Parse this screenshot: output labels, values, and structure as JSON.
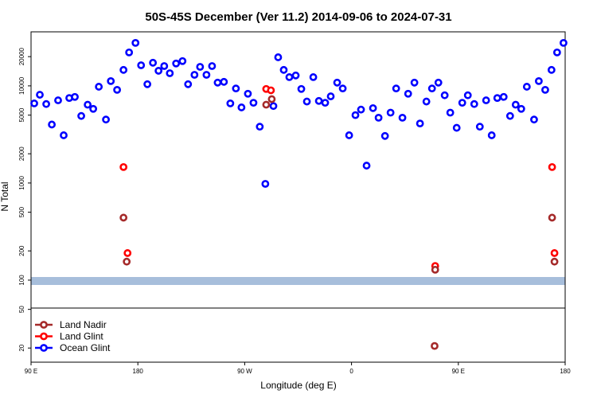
{
  "chart_data": {
    "type": "scatter",
    "title": "50S-45S December (Ver 11.2)   2014-09-06 to 2024-07-31",
    "xlabel": "Longitude (deg E)",
    "ylabel": "N Total",
    "ylog": true,
    "legend": "lower left",
    "xlim": [
      90,
      540
    ],
    "xticks": [
      {
        "value": 90,
        "label": "90 E"
      },
      {
        "value": 180,
        "label": "180"
      },
      {
        "value": 270,
        "label": "90 W"
      },
      {
        "value": 360,
        "label": "0"
      },
      {
        "value": 450,
        "label": "90 E"
      },
      {
        "value": 540,
        "label": "180"
      }
    ],
    "ylim": [
      14.3,
      36000
    ],
    "yticks": [
      20,
      50,
      100,
      200,
      500,
      1000,
      2000,
      5000,
      10000,
      20000
    ],
    "series": [
      {
        "name": "Land Nadir",
        "color": "#a52a2a",
        "x": [
          167.9,
          170.6,
          288.1,
          292.8,
          430.5,
          430,
          529,
          531
        ],
        "values": [
          440,
          155,
          6400,
          7300,
          128,
          21,
          440,
          155
        ]
      },
      {
        "name": "Land Glint",
        "color": "#ff0000",
        "x": [
          167.9,
          171.3,
          288.1,
          292.1,
          430.5,
          529,
          531
        ],
        "values": [
          1460,
          190,
          9300,
          9000,
          140,
          1460,
          190
        ]
      },
      {
        "name": "Ocean Glint",
        "color": "#0000ff",
        "x": [
          92.7,
          97.4,
          102.8,
          107.5,
          112.8,
          117.5,
          122.2,
          126.9,
          132.3,
          137.7,
          142.4,
          147.1,
          153.1,
          157.2,
          162.5,
          167.9,
          172.6,
          178,
          182.7,
          188,
          192.7,
          197.4,
          202.2,
          206.9,
          212.2,
          217.6,
          222.3,
          227.7,
          232.4,
          237.8,
          242.5,
          247.2,
          252.5,
          257.9,
          262.6,
          267.3,
          272.7,
          277.4,
          282.7,
          287.4,
          294.2,
          298.2,
          302.9,
          307.6,
          313,
          317.7,
          322.4,
          327.8,
          332.5,
          337.8,
          342.5,
          347.9,
          352.6,
          358,
          363.3,
          368,
          372.7,
          378.1,
          382.8,
          388.2,
          392.9,
          397.6,
          402.9,
          407.7,
          413,
          417.7,
          423.1,
          427.8,
          433.2,
          438.5,
          443.2,
          448.6,
          453.3,
          458,
          463.4,
          468.1,
          473.4,
          478.1,
          482.8,
          488.2,
          493.6,
          498.3,
          503,
          507.7,
          513.8,
          517.8,
          523.2,
          528.5,
          533.2,
          538.6
        ],
        "values": [
          6600,
          8100,
          6500,
          4000,
          7100,
          3100,
          7500,
          7700,
          4900,
          6400,
          5800,
          9800,
          4500,
          11200,
          9100,
          14600,
          22100,
          27700,
          16300,
          10400,
          17300,
          14300,
          16000,
          13500,
          17000,
          18000,
          10400,
          13000,
          15700,
          13000,
          16000,
          10800,
          11000,
          6600,
          9400,
          6000,
          8300,
          6700,
          3800,
          980,
          6200,
          19700,
          14600,
          12300,
          12800,
          9300,
          6900,
          12300,
          7000,
          6700,
          7800,
          10800,
          9400,
          3100,
          5000,
          5700,
          1510,
          5900,
          4700,
          3050,
          5300,
          9400,
          4700,
          8300,
          10800,
          4100,
          6900,
          9400,
          10800,
          8000,
          5300,
          3700,
          6700,
          8000,
          6500,
          3800,
          7100,
          3100,
          7500,
          7700,
          4900,
          6400,
          5800,
          9800,
          4500,
          11200,
          9100,
          14600,
          22100,
          27700
        ]
      }
    ]
  }
}
